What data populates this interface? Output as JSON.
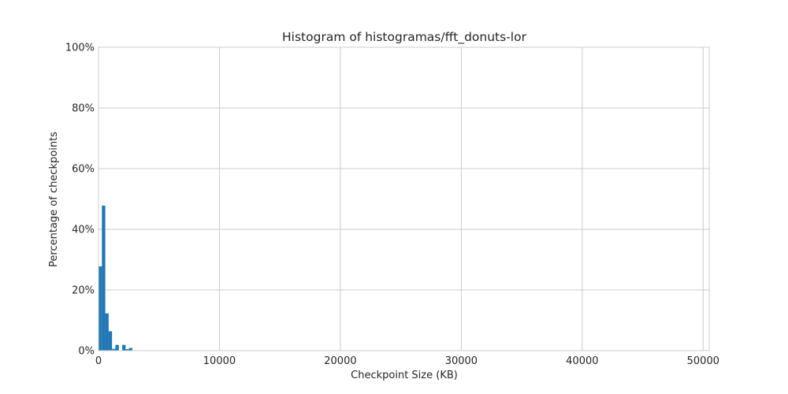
{
  "chart_data": {
    "type": "bar",
    "title": "Histogram of histogramas/fft_donuts-lor",
    "xlabel": "Checkpoint Size (KB)",
    "ylabel": "Percentage of checkpoints",
    "xlim": [
      0,
      50500
    ],
    "ylim": [
      0,
      100
    ],
    "x_ticks": [
      0,
      10000,
      20000,
      30000,
      40000,
      50000
    ],
    "x_tick_labels": [
      "0",
      "10000",
      "20000",
      "30000",
      "40000",
      "50000"
    ],
    "y_ticks": [
      0,
      20,
      40,
      60,
      80,
      100
    ],
    "y_tick_labels": [
      "0%",
      "20%",
      "40%",
      "60%",
      "80%",
      "100%"
    ],
    "grid": true,
    "legend": "none",
    "bar_color": "#1f77b4",
    "grid_color": "#cccccc",
    "bins": [
      {
        "x0": 0,
        "x1": 280,
        "value": 27.8
      },
      {
        "x0": 280,
        "x1": 560,
        "value": 47.8
      },
      {
        "x0": 560,
        "x1": 840,
        "value": 12.3
      },
      {
        "x0": 840,
        "x1": 1120,
        "value": 6.4
      },
      {
        "x0": 1120,
        "x1": 1400,
        "value": 0.6
      },
      {
        "x0": 1400,
        "x1": 1680,
        "value": 1.9
      },
      {
        "x0": 1960,
        "x1": 2240,
        "value": 1.9
      },
      {
        "x0": 2240,
        "x1": 2520,
        "value": 0.5
      },
      {
        "x0": 2520,
        "x1": 2800,
        "value": 0.9
      }
    ]
  }
}
